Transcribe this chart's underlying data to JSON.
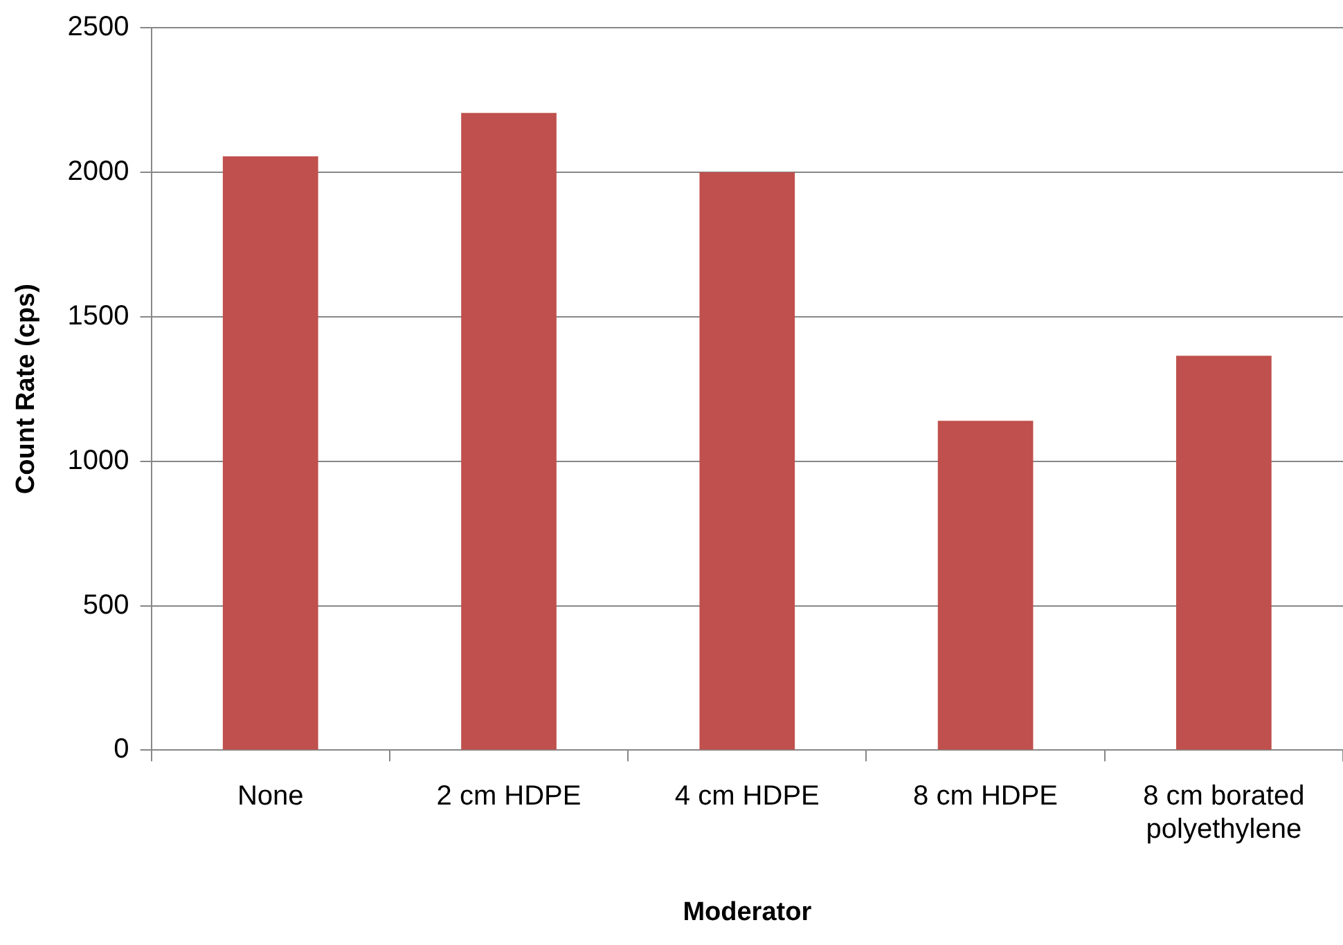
{
  "chart_data": {
    "type": "bar",
    "xlabel": "Moderator",
    "ylabel": "Count Rate (cps)",
    "categories": [
      "None",
      "2 cm HDPE",
      "4 cm HDPE",
      "8 cm HDPE",
      "8 cm borated polyethylene"
    ],
    "values": [
      2055,
      2205,
      2000,
      1140,
      1365
    ],
    "color": "#c0504d",
    "ylim": [
      0,
      2500
    ],
    "yticks": [
      0,
      500,
      1000,
      1500,
      2000,
      2500
    ],
    "grid": "y"
  }
}
